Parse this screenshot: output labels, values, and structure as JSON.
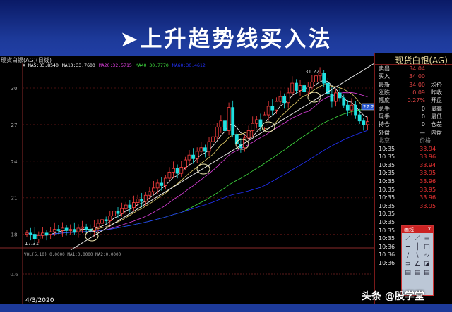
{
  "slide_title": "➤上升趋势线买入法",
  "chart": {
    "title": "现货白银(AG)(日线)",
    "ma_legend": [
      {
        "label": "X  MA5:33.8540",
        "color": "#ffffff"
      },
      {
        "label": "MA10:33.7600",
        "color": "#ffffff"
      },
      {
        "label": "MA20:32.5715",
        "color": "#e040e0"
      },
      {
        "label": "MA40:30.7770",
        "color": "#40e040"
      },
      {
        "label": "MA60:30.4612",
        "color": "#2233ff"
      }
    ],
    "y_ticks": [
      "30",
      "27",
      "24",
      "21",
      "18"
    ],
    "high_label": "31.22",
    "low_label": "17.31",
    "last_label": "27.24",
    "volume_legend": "VOL(5,10) 0.0000 MA1:0.0000 MA2:0.0000",
    "volume_tick": "0.6",
    "date": "4/3/2020"
  },
  "chart_data": {
    "type": "candlestick",
    "y_ticks": [
      18,
      21,
      24,
      27,
      30
    ],
    "high": 31.22,
    "low": 17.31,
    "closes": [
      18.1,
      18.0,
      17.6,
      17.9,
      18.1,
      18.0,
      18.2,
      18.4,
      18.3,
      18.5,
      18.3,
      18.4,
      18.2,
      18.5,
      18.6,
      18.4,
      18.3,
      18.6,
      18.9,
      19.2,
      19.1,
      19.5,
      19.9,
      19.7,
      20.1,
      20.4,
      20.2,
      20.6,
      20.9,
      20.7,
      21.2,
      21.5,
      21.8,
      22.2,
      22.0,
      22.6,
      23.1,
      23.4,
      23.0,
      23.5,
      24.1,
      24.5,
      24.2,
      24.8,
      25.1,
      24.8,
      25.6,
      26.0,
      26.8,
      27.3,
      26.5,
      28.4,
      26.2,
      25.4,
      25.1,
      25.9,
      26.5,
      27.1,
      27.4,
      26.8,
      27.8,
      28.5,
      28.2,
      28.9,
      29.3,
      28.8,
      29.6,
      30.4,
      29.8,
      30.2,
      29.7,
      30.1,
      30.5,
      31.0,
      31.22,
      30.4,
      29.5,
      28.9,
      29.6,
      29.2,
      28.6,
      28.2,
      28.6,
      27.8,
      27.3,
      27.0,
      27.24
    ]
  },
  "quote_panel": {
    "title": "现货白银(AG)",
    "rows": [
      {
        "k": "卖出",
        "v": "34.04"
      },
      {
        "k": "买入",
        "v": "34.00"
      },
      {
        "k": "最新",
        "v": "34.00",
        "k2": "均价"
      },
      {
        "k": "涨跌",
        "v": "0.09",
        "k2": "昨收"
      },
      {
        "k": "幅度",
        "v": "0.27%",
        "k2": "开盘"
      },
      {
        "k": "总手",
        "v": "0",
        "k2": "最高",
        "w": true
      },
      {
        "k": "现手",
        "v": "0",
        "k2": "最低",
        "w": true
      },
      {
        "k": "持仓",
        "v": "0",
        "k2": "仓差",
        "w": true
      },
      {
        "k": "外盘",
        "v": "—",
        "k2": "内盘",
        "w": true
      }
    ],
    "tick_header": {
      "time": "北京",
      "price": "价格"
    },
    "ticks": [
      {
        "t": "10:35",
        "p": "33.94"
      },
      {
        "t": "10:35",
        "p": "33.96"
      },
      {
        "t": "10:35",
        "p": "33.94"
      },
      {
        "t": "10:35",
        "p": "33.95"
      },
      {
        "t": "10:35",
        "p": "33.96"
      },
      {
        "t": "10:35",
        "p": "33.95"
      },
      {
        "t": "10:35",
        "p": "33.96"
      },
      {
        "t": "10:35",
        "p": "33.95"
      },
      {
        "t": "10:35",
        "p": ""
      },
      {
        "t": "10:35",
        "p": ""
      },
      {
        "t": "10:35",
        "p": ""
      },
      {
        "t": "10:35",
        "p": ""
      },
      {
        "t": "10:36",
        "p": ""
      },
      {
        "t": "10:36",
        "p": ""
      },
      {
        "t": "10:36",
        "p": ""
      }
    ]
  },
  "draw_toolbox": {
    "title": "画线",
    "close": "x",
    "tools": [
      "⟋",
      "⟋",
      "≡",
      "━",
      "┃",
      "□",
      "/",
      "\\",
      "∿",
      "⊃",
      "∠",
      "◪",
      "▤",
      "▤",
      "▤"
    ]
  },
  "watermark": "头条 @股学堂"
}
